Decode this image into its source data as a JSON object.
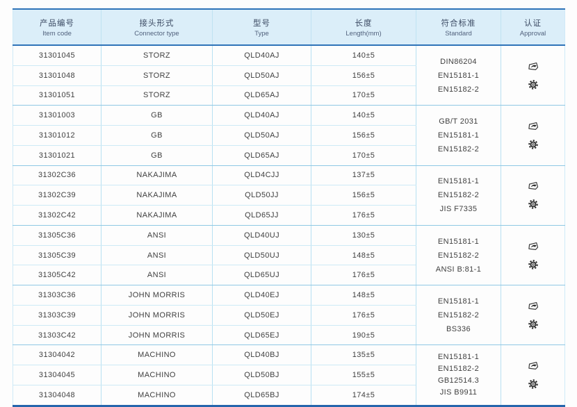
{
  "colors": {
    "accent_border": "#2e73b8",
    "bottom_border": "#2565ac",
    "header_bg": "#dbeef9",
    "row_line": "#cdeaf6",
    "group_line": "#8fc8e4",
    "column_line": "#b7e0f2",
    "header_text": "#3c4b64",
    "cell_text": "#3f3f3f"
  },
  "icons": {
    "approval_top": "certificate-logo-icon",
    "approval_bottom": "gear-wheelmark-icon"
  },
  "table": {
    "headers": [
      {
        "zh": "产品编号",
        "en": "Item code"
      },
      {
        "zh": "接头形式",
        "en": "Connector type"
      },
      {
        "zh": "型号",
        "en": "Type"
      },
      {
        "zh": "长度",
        "en": "Length(mm)"
      },
      {
        "zh": "符合标准",
        "en": "Standard"
      },
      {
        "zh": "认证",
        "en": "Approval"
      }
    ],
    "groups": [
      {
        "rows": [
          {
            "code": "31301045",
            "connector": "STORZ",
            "type": "QLD40AJ",
            "length": "140±5"
          },
          {
            "code": "31301048",
            "connector": "STORZ",
            "type": "QLD50AJ",
            "length": "156±5"
          },
          {
            "code": "31301051",
            "connector": "STORZ",
            "type": "QLD65AJ",
            "length": "170±5"
          }
        ],
        "standards": [
          "DIN86204",
          "EN15181-1",
          "EN15182-2"
        ]
      },
      {
        "rows": [
          {
            "code": "31301003",
            "connector": "GB",
            "type": "QLD40AJ",
            "length": "140±5"
          },
          {
            "code": "31301012",
            "connector": "GB",
            "type": "QLD50AJ",
            "length": "156±5"
          },
          {
            "code": "31301021",
            "connector": "GB",
            "type": "QLD65AJ",
            "length": "170±5"
          }
        ],
        "standards": [
          "GB/T 2031",
          "EN15181-1",
          "EN15182-2"
        ]
      },
      {
        "rows": [
          {
            "code": "31302C36",
            "connector": "NAKAJIMA",
            "type": "QLD4CJJ",
            "length": "137±5"
          },
          {
            "code": "31302C39",
            "connector": "NAKAJIMA",
            "type": "QLD50JJ",
            "length": "156±5"
          },
          {
            "code": "31302C42",
            "connector": "NAKAJIMA",
            "type": "QLD65JJ",
            "length": "176±5"
          }
        ],
        "standards": [
          "EN15181-1",
          "EN15182-2",
          "JIS F7335"
        ]
      },
      {
        "rows": [
          {
            "code": "31305C36",
            "connector": "ANSI",
            "type": "QLD40UJ",
            "length": "130±5"
          },
          {
            "code": "31305C39",
            "connector": "ANSI",
            "type": "QLD50UJ",
            "length": "148±5"
          },
          {
            "code": "31305C42",
            "connector": "ANSI",
            "type": "QLD65UJ",
            "length": "176±5"
          }
        ],
        "standards": [
          "EN15181-1",
          "EN15182-2",
          "ANSI B:81-1"
        ]
      },
      {
        "rows": [
          {
            "code": "31303C36",
            "connector": "JOHN MORRIS",
            "type": "QLD40EJ",
            "length": "148±5"
          },
          {
            "code": "31303C39",
            "connector": "JOHN MORRIS",
            "type": "QLD50EJ",
            "length": "176±5"
          },
          {
            "code": "31303C42",
            "connector": "JOHN MORRIS",
            "type": "QLD65EJ",
            "length": "190±5"
          }
        ],
        "standards": [
          "EN15181-1",
          "EN15182-2",
          "BS336"
        ]
      },
      {
        "rows": [
          {
            "code": "31304042",
            "connector": "MACHINO",
            "type": "QLD40BJ",
            "length": "135±5"
          },
          {
            "code": "31304045",
            "connector": "MACHINO",
            "type": "QLD50BJ",
            "length": "155±5"
          },
          {
            "code": "31304048",
            "connector": "MACHINO",
            "type": "QLD65BJ",
            "length": "174±5"
          }
        ],
        "standards": [
          "EN15181-1",
          "EN15182-2",
          "GB12514.3",
          "JIS B9911"
        ]
      }
    ]
  }
}
